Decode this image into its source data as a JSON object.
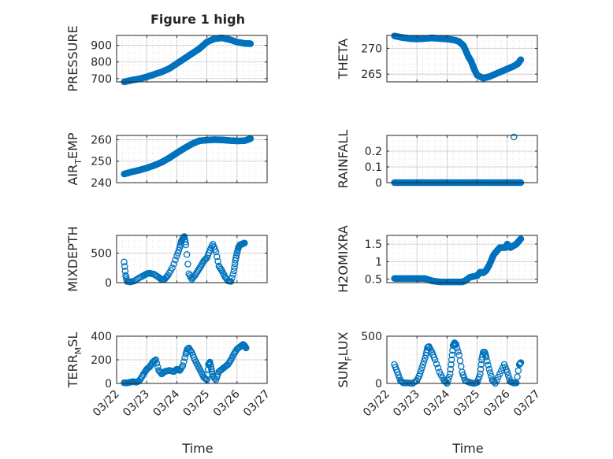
{
  "figure_title": "Figure 1 high",
  "x_label": "Time",
  "x_tick_labels": [
    "03/22",
    "03/23",
    "03/24",
    "03/25",
    "03/26",
    "03/27"
  ],
  "colors": {
    "marker": "#0072BD",
    "axes": "#262626",
    "grid": "#d9d9d9",
    "background": "#ffffff"
  },
  "chart_data": [
    {
      "type": "scatter",
      "panel": "PRESSURE",
      "ylabel": "PRESSURE",
      "x_unit": "days since 03/22",
      "xlim": [
        0,
        5
      ],
      "ylim": [
        680,
        960
      ],
      "yticks": [
        700,
        800,
        900
      ],
      "ytick_labels": [
        "700",
        "800",
        "900"
      ],
      "grid": true,
      "marker": "filled-dense",
      "x": [
        0.25,
        0.5,
        0.75,
        1.0,
        1.25,
        1.5,
        1.75,
        2.0,
        2.25,
        2.5,
        2.75,
        3.0,
        3.25,
        3.5,
        3.75,
        4.0,
        4.25,
        4.45
      ],
      "y": [
        680,
        690,
        698,
        710,
        725,
        740,
        760,
        790,
        820,
        850,
        880,
        920,
        940,
        945,
        935,
        920,
        912,
        910
      ]
    },
    {
      "type": "scatter",
      "panel": "THETA",
      "ylabel": "THETA",
      "xlim": [
        0,
        5
      ],
      "ylim": [
        263.5,
        272.5
      ],
      "yticks": [
        265,
        270
      ],
      "ytick_labels": [
        "265",
        "270"
      ],
      "grid": true,
      "marker": "filled-dense",
      "x": [
        0.25,
        0.5,
        0.75,
        1.0,
        1.25,
        1.5,
        1.75,
        2.0,
        2.25,
        2.4,
        2.55,
        2.7,
        2.8,
        2.9,
        3.0,
        3.2,
        3.4,
        3.6,
        3.8,
        4.0,
        4.2,
        4.35,
        4.45
      ],
      "y": [
        272.4,
        272.1,
        271.9,
        271.8,
        271.9,
        272.0,
        271.9,
        271.8,
        271.6,
        271.3,
        270.5,
        268.5,
        267.5,
        266.0,
        264.8,
        264.2,
        264.5,
        265.0,
        265.5,
        266.0,
        266.5,
        267.0,
        267.8
      ]
    },
    {
      "type": "scatter",
      "panel": "AIR_TEMP",
      "ylabel": "AIR_TEMP",
      "xlim": [
        0,
        5
      ],
      "ylim": [
        240,
        262
      ],
      "yticks": [
        240,
        250,
        260
      ],
      "ytick_labels": [
        "240",
        "250",
        "260"
      ],
      "grid": true,
      "marker": "filled-dense",
      "x": [
        0.25,
        0.5,
        0.75,
        1.0,
        1.25,
        1.5,
        1.75,
        2.0,
        2.25,
        2.5,
        2.75,
        3.0,
        3.25,
        3.5,
        3.75,
        4.0,
        4.25,
        4.45
      ],
      "y": [
        244,
        245,
        245.8,
        246.8,
        248,
        249.5,
        251.5,
        253.8,
        256,
        258,
        259.5,
        259.8,
        260,
        259.9,
        259.6,
        259.4,
        259.5,
        260.5
      ]
    },
    {
      "type": "scatter",
      "panel": "RAINFALL",
      "ylabel": "RAINFALL",
      "xlim": [
        0,
        5
      ],
      "ylim": [
        0,
        0.3
      ],
      "yticks": [
        0,
        0.1,
        0.2
      ],
      "ytick_labels": [
        "0",
        "0.1",
        "0.2"
      ],
      "grid": true,
      "marker": "filled-dense-with-outlier",
      "x": [
        0.25,
        4.45,
        4.22
      ],
      "y": [
        0,
        0,
        0.29
      ]
    },
    {
      "type": "scatter",
      "panel": "MIXDEPTH",
      "ylabel": "MIXDEPTH",
      "xlim": [
        0,
        5
      ],
      "ylim": [
        0,
        800
      ],
      "yticks": [
        0,
        500
      ],
      "ytick_labels": [
        "0",
        "500"
      ],
      "grid": true,
      "marker": "open",
      "x": [
        0.25,
        0.3,
        0.35,
        0.45,
        0.6,
        0.75,
        0.9,
        1.0,
        1.1,
        1.25,
        1.4,
        1.5,
        1.6,
        1.7,
        1.85,
        2.0,
        2.1,
        2.15,
        2.2,
        2.25,
        2.3,
        2.4,
        2.5,
        2.6,
        2.7,
        2.8,
        2.9,
        3.0,
        3.1,
        3.2,
        3.3,
        3.4,
        3.5,
        3.6,
        3.7,
        3.8,
        3.9,
        3.95,
        4.0,
        4.05,
        4.1,
        4.15,
        4.2,
        4.25
      ],
      "y": [
        350,
        120,
        20,
        10,
        30,
        80,
        120,
        150,
        160,
        140,
        90,
        50,
        60,
        120,
        250,
        450,
        600,
        700,
        750,
        780,
        640,
        150,
        60,
        120,
        200,
        280,
        370,
        420,
        550,
        650,
        520,
        280,
        200,
        100,
        30,
        20,
        200,
        380,
        500,
        600,
        640,
        650,
        660,
        670
      ]
    },
    {
      "type": "scatter",
      "panel": "H2OMIXRA",
      "ylabel": "H2OMIXRA",
      "xlim": [
        0,
        5
      ],
      "ylim": [
        0.4,
        1.75
      ],
      "yticks": [
        0.5,
        1,
        1.5
      ],
      "ytick_labels": [
        "0.5",
        "1",
        "1.5"
      ],
      "grid": true,
      "marker": "filled-dense",
      "x": [
        0.25,
        0.5,
        0.75,
        1.0,
        1.25,
        1.5,
        1.75,
        2.0,
        2.25,
        2.5,
        2.6,
        2.75,
        3.0,
        3.1,
        3.2,
        3.3,
        3.4,
        3.55,
        3.75,
        3.95,
        4.0,
        4.1,
        4.2,
        4.3,
        4.45
      ],
      "y": [
        0.52,
        0.52,
        0.52,
        0.52,
        0.52,
        0.45,
        0.42,
        0.42,
        0.42,
        0.42,
        0.45,
        0.55,
        0.6,
        0.7,
        0.68,
        0.75,
        0.9,
        1.2,
        1.4,
        1.4,
        1.5,
        1.4,
        1.45,
        1.5,
        1.65
      ]
    },
    {
      "type": "scatter",
      "panel": "TERR_MSL",
      "ylabel": "TERR_MSL",
      "xlim": [
        0,
        5
      ],
      "ylim": [
        0,
        400
      ],
      "yticks": [
        0,
        200,
        400
      ],
      "ytick_labels": [
        "0",
        "200",
        "400"
      ],
      "grid": true,
      "marker": "open",
      "x": [
        0.25,
        0.35,
        0.45,
        0.55,
        0.65,
        0.75,
        0.85,
        0.95,
        1.0,
        1.1,
        1.2,
        1.3,
        1.4,
        1.5,
        1.6,
        1.75,
        1.9,
        2.0,
        2.1,
        2.2,
        2.3,
        2.35,
        2.4,
        2.5,
        2.6,
        2.7,
        2.8,
        2.9,
        3.0,
        3.05,
        3.1,
        3.15,
        3.2,
        3.3,
        3.4,
        3.5,
        3.6,
        3.7,
        3.8,
        3.9,
        4.0,
        4.1,
        4.2,
        4.25,
        4.3
      ],
      "y": [
        5,
        5,
        10,
        15,
        10,
        20,
        60,
        100,
        120,
        140,
        180,
        200,
        110,
        80,
        100,
        110,
        100,
        120,
        110,
        150,
        250,
        290,
        300,
        260,
        200,
        150,
        100,
        50,
        30,
        160,
        180,
        120,
        60,
        30,
        100,
        120,
        140,
        160,
        200,
        250,
        290,
        310,
        330,
        320,
        300
      ]
    },
    {
      "type": "scatter",
      "panel": "SUN_FLUX",
      "ylabel": "SUN_FLUX",
      "xlim": [
        0,
        5
      ],
      "ylim": [
        0,
        500
      ],
      "yticks": [
        0,
        500
      ],
      "ytick_labels": [
        "0",
        "500"
      ],
      "grid": true,
      "marker": "open",
      "x": [
        0.25,
        0.35,
        0.45,
        0.55,
        0.7,
        0.85,
        1.0,
        1.1,
        1.2,
        1.3,
        1.35,
        1.4,
        1.5,
        1.6,
        1.75,
        1.9,
        2.0,
        2.1,
        2.15,
        2.2,
        2.25,
        2.3,
        2.4,
        2.5,
        2.6,
        2.75,
        2.9,
        3.0,
        3.1,
        3.15,
        3.2,
        3.25,
        3.3,
        3.4,
        3.5,
        3.6,
        3.75,
        3.9,
        4.0,
        4.1,
        4.2,
        4.3,
        4.4,
        4.45
      ],
      "y": [
        200,
        120,
        30,
        5,
        5,
        0,
        30,
        100,
        200,
        300,
        380,
        390,
        330,
        250,
        120,
        30,
        0,
        100,
        250,
        400,
        430,
        410,
        300,
        120,
        30,
        10,
        0,
        10,
        100,
        250,
        330,
        330,
        280,
        150,
        40,
        0,
        100,
        200,
        120,
        20,
        5,
        5,
        200,
        220
      ]
    }
  ]
}
